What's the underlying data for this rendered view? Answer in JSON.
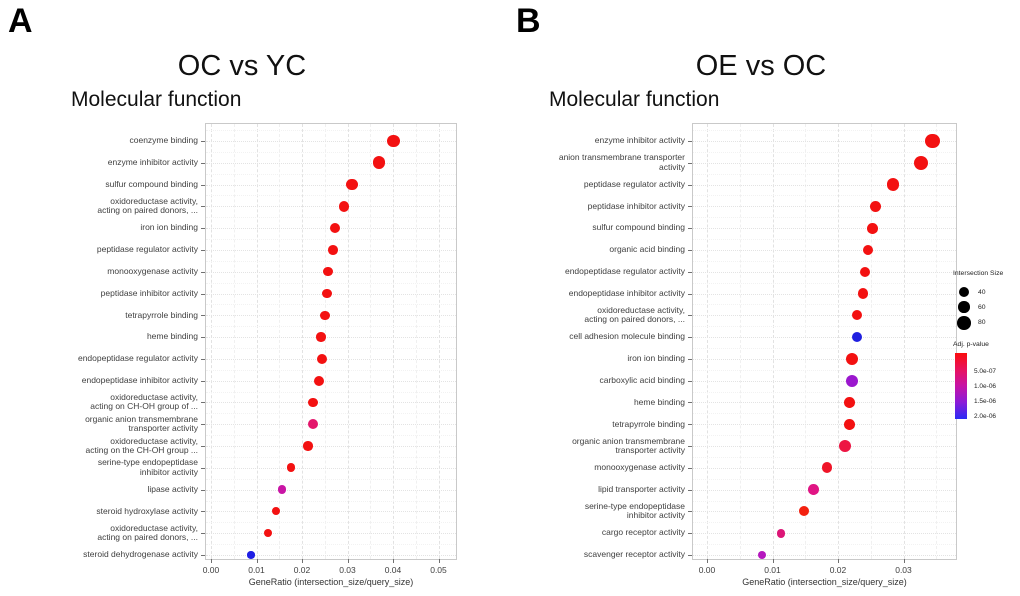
{
  "figure": {
    "panel_a_letter": "A",
    "panel_b_letter": "B"
  },
  "legend": {
    "size_title": "Intersection Size",
    "size_items": [
      "40",
      "60",
      "80"
    ],
    "pvalue_title": "Adj. p-value",
    "pvalue_ticks": [
      "5.0e-07",
      "1.0e-06",
      "1.5e-06",
      "2.0e-06"
    ],
    "gradient_colors": [
      "#FA0D0D",
      "#E8125E",
      "#C613A6",
      "#8A1BD8",
      "#2B2BF5"
    ]
  },
  "chart_data": [
    {
      "type": "scatter",
      "panel": "A",
      "title": "OC vs YC",
      "subtitle": "Molecular function",
      "xlabel": "GeneRatio (intersection_size/query_size)",
      "xlim": [
        0,
        0.0535
      ],
      "xticks": [
        "0.00",
        "0.01",
        "0.02",
        "0.03",
        "0.04",
        "0.05"
      ],
      "grid": "major and minor, dashed, light gray",
      "legend_position": "shared right",
      "points": [
        {
          "label": [
            "coenzyme binding"
          ],
          "gene_ratio": 0.0402,
          "intersection_size": 75,
          "color": "#F31111"
        },
        {
          "label": [
            "enzyme inhibitor activity"
          ],
          "gene_ratio": 0.0369,
          "intersection_size": 72,
          "color": "#F31111"
        },
        {
          "label": [
            "sulfur compound binding"
          ],
          "gene_ratio": 0.031,
          "intersection_size": 57,
          "color": "#F31111"
        },
        {
          "label": [
            "oxidoreductase activity,",
            "acting on paired donors, ..."
          ],
          "gene_ratio": 0.0292,
          "intersection_size": 51,
          "color": "#F31111"
        },
        {
          "label": [
            "iron ion binding"
          ],
          "gene_ratio": 0.0273,
          "intersection_size": 45,
          "color": "#F31111"
        },
        {
          "label": [
            "peptidase regulator activity"
          ],
          "gene_ratio": 0.0268,
          "intersection_size": 42,
          "color": "#F31111"
        },
        {
          "label": [
            "monooxygenase activity"
          ],
          "gene_ratio": 0.0257,
          "intersection_size": 40,
          "color": "#F31111"
        },
        {
          "label": [
            "peptidase inhibitor activity"
          ],
          "gene_ratio": 0.0255,
          "intersection_size": 40,
          "color": "#F31111"
        },
        {
          "label": [
            "tetrapyrrole binding"
          ],
          "gene_ratio": 0.0251,
          "intersection_size": 40,
          "color": "#F31111"
        },
        {
          "label": [
            "heme binding"
          ],
          "gene_ratio": 0.0242,
          "intersection_size": 38,
          "color": "#F31111"
        },
        {
          "label": [
            "endopeptidase regulator activity"
          ],
          "gene_ratio": 0.0244,
          "intersection_size": 44,
          "color": "#F31111"
        },
        {
          "label": [
            "endopeptidase inhibitor activity"
          ],
          "gene_ratio": 0.0237,
          "intersection_size": 44,
          "color": "#F31111"
        },
        {
          "label": [
            "oxidoreductase activity,",
            "acting on CH-OH group of ..."
          ],
          "gene_ratio": 0.0224,
          "intersection_size": 38,
          "color": "#F31111"
        },
        {
          "label": [
            "organic anion transmembrane",
            "transporter activity"
          ],
          "gene_ratio": 0.0224,
          "intersection_size": 44,
          "color": "#E4156B"
        },
        {
          "label": [
            "oxidoreductase activity,",
            "acting on the CH-OH group ..."
          ],
          "gene_ratio": 0.0213,
          "intersection_size": 38,
          "color": "#F31111"
        },
        {
          "label": [
            "serine-type endopeptidase",
            "inhibitor activity"
          ],
          "gene_ratio": 0.0176,
          "intersection_size": 34,
          "color": "#F31111"
        },
        {
          "label": [
            "lipase activity"
          ],
          "gene_ratio": 0.0156,
          "intersection_size": 34,
          "color": "#C915A5"
        },
        {
          "label": [
            "steroid hydroxylase activity"
          ],
          "gene_ratio": 0.0143,
          "intersection_size": 28,
          "color": "#F31111"
        },
        {
          "label": [
            "oxidoreductase activity,",
            "acting on paired donors, ..."
          ],
          "gene_ratio": 0.0125,
          "intersection_size": 28,
          "color": "#F31111"
        },
        {
          "label": [
            "steroid dehydrogenase activity"
          ],
          "gene_ratio": 0.0088,
          "intersection_size": 24,
          "color": "#1E1EE4"
        }
      ]
    },
    {
      "type": "scatter",
      "panel": "B",
      "title": "OE vs OC",
      "subtitle": "Molecular function",
      "xlabel": "GeneRatio (intersection_size/query_size)",
      "xlim": [
        0,
        0.0365
      ],
      "xticks": [
        "0.00",
        "0.01",
        "0.02",
        "0.03"
      ],
      "grid": "major and minor, dashed, light gray",
      "legend_position": "shared right",
      "points": [
        {
          "label": [
            "enzyme inhibitor activity"
          ],
          "gene_ratio": 0.0344,
          "intersection_size": 96,
          "color": "#F31111"
        },
        {
          "label": [
            "anion transmembrane transporter",
            "activity"
          ],
          "gene_ratio": 0.0327,
          "intersection_size": 87,
          "color": "#F31111"
        },
        {
          "label": [
            "peptidase regulator activity"
          ],
          "gene_ratio": 0.0284,
          "intersection_size": 72,
          "color": "#F31111"
        },
        {
          "label": [
            "peptidase inhibitor activity"
          ],
          "gene_ratio": 0.0257,
          "intersection_size": 57,
          "color": "#F31111"
        },
        {
          "label": [
            "sulfur compound binding"
          ],
          "gene_ratio": 0.0253,
          "intersection_size": 51,
          "color": "#F31111"
        },
        {
          "label": [
            "organic acid binding"
          ],
          "gene_ratio": 0.0246,
          "intersection_size": 45,
          "color": "#F31111"
        },
        {
          "label": [
            "endopeptidase regulator activity"
          ],
          "gene_ratio": 0.0241,
          "intersection_size": 45,
          "color": "#F31111"
        },
        {
          "label": [
            "endopeptidase inhibitor activity"
          ],
          "gene_ratio": 0.0238,
          "intersection_size": 51,
          "color": "#F31111"
        },
        {
          "label": [
            "oxidoreductase activity,",
            "acting on paired donors, ..."
          ],
          "gene_ratio": 0.0229,
          "intersection_size": 45,
          "color": "#F31111"
        },
        {
          "label": [
            "cell adhesion molecule binding"
          ],
          "gene_ratio": 0.0229,
          "intersection_size": 51,
          "color": "#2020E0"
        },
        {
          "label": [
            "iron ion binding"
          ],
          "gene_ratio": 0.0221,
          "intersection_size": 64,
          "color": "#F31111"
        },
        {
          "label": [
            "carboxylic acid binding"
          ],
          "gene_ratio": 0.0221,
          "intersection_size": 64,
          "color": "#9B17CE"
        },
        {
          "label": [
            "heme binding"
          ],
          "gene_ratio": 0.0218,
          "intersection_size": 51,
          "color": "#F31111"
        },
        {
          "label": [
            "tetrapyrrole binding"
          ],
          "gene_ratio": 0.0218,
          "intersection_size": 51,
          "color": "#F31111"
        },
        {
          "label": [
            "organic anion transmembrane",
            "transporter activity"
          ],
          "gene_ratio": 0.0211,
          "intersection_size": 64,
          "color": "#ED1543"
        },
        {
          "label": [
            "monooxygenase activity"
          ],
          "gene_ratio": 0.0183,
          "intersection_size": 51,
          "color": "#EF1528"
        },
        {
          "label": [
            "lipid transporter activity"
          ],
          "gene_ratio": 0.0163,
          "intersection_size": 51,
          "color": "#E01584"
        },
        {
          "label": [
            "serine-type endopeptidase",
            "inhibitor activity"
          ],
          "gene_ratio": 0.0148,
          "intersection_size": 45,
          "color": "#F3200F"
        },
        {
          "label": [
            "cargo receptor activity"
          ],
          "gene_ratio": 0.0113,
          "intersection_size": 34,
          "color": "#DC1677"
        },
        {
          "label": [
            "scavenger receptor activity"
          ],
          "gene_ratio": 0.0084,
          "intersection_size": 34,
          "color": "#B517BE"
        }
      ]
    }
  ]
}
